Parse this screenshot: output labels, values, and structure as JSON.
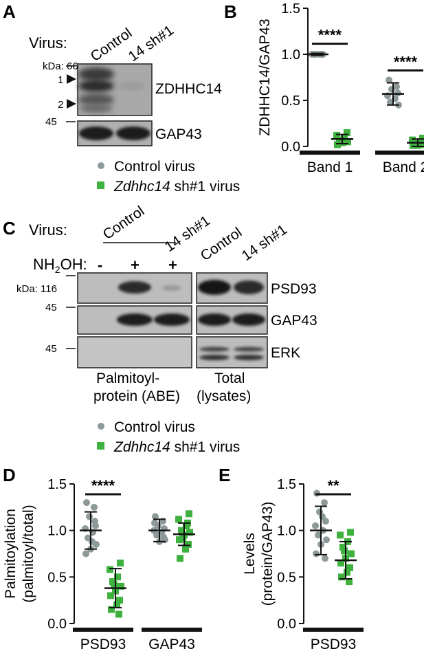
{
  "panels": {
    "A": {
      "letter": "A",
      "virus_label": "Virus:",
      "lanes": [
        "Control",
        "14 sh#1"
      ],
      "kda_label": "kDa: 66",
      "marker_45": "45",
      "band_labels": [
        "1",
        "2"
      ],
      "protein_labels": [
        "ZDHHC14",
        "GAP43"
      ]
    },
    "B": {
      "letter": "B"
    },
    "C": {
      "letter": "C",
      "virus_label": "Virus:",
      "control_label": "Control",
      "sh_label": "14 sh#1",
      "nh2oh_label": "NH",
      "nh2oh_sub": "2",
      "nh2oh_tail": "OH:",
      "nh2oh_signs": [
        "-",
        "+",
        "+"
      ],
      "total_lanes": [
        "Control",
        "14 sh#1"
      ],
      "kda_label": "kDa: 116",
      "marker_45a": "45",
      "marker_45b": "45",
      "protein_labels": [
        "PSD93",
        "GAP43",
        "ERK"
      ],
      "group1": [
        "Palmitoyl-",
        "protein (ABE)"
      ],
      "group2": [
        "Total",
        "(lysates)"
      ]
    },
    "D": {
      "letter": "D"
    },
    "E": {
      "letter": "E"
    }
  },
  "legend1": {
    "control": "Control virus",
    "sh_italic": "Zdhhc14",
    "sh_rest": " sh#1 virus"
  },
  "legend2": {
    "control": "Control virus",
    "sh_italic": "Zdhhc14",
    "sh_rest": " sh#1 virus"
  },
  "colors": {
    "control": "#8e9a99",
    "sh": "#3fb13f",
    "ink": "#111111"
  },
  "chart_data": [
    {
      "panel": "B",
      "type": "scatter",
      "ylabel": "ZDHHC14/GAP43",
      "categories": [
        "Band 1",
        "Band 2"
      ],
      "ylim": [
        0,
        1.5
      ],
      "yticks": [
        "0.0",
        "0.5",
        "1.0",
        "1.5"
      ],
      "significance": [
        "****",
        "****"
      ],
      "series": [
        {
          "name": "Control virus",
          "mean": [
            1.0,
            0.57
          ],
          "sd": [
            0.01,
            0.12
          ],
          "points": [
            [
              1.0,
              1.0,
              1.0,
              1.0,
              1.0,
              1.0,
              1.0,
              1.0
            ],
            [
              0.72,
              0.65,
              0.62,
              0.58,
              0.55,
              0.52,
              0.48,
              0.45
            ]
          ]
        },
        {
          "name": "Zdhhc14 sh#1 virus",
          "mean": [
            0.08,
            0.04
          ],
          "sd": [
            0.05,
            0.04
          ],
          "points": [
            [
              0.15,
              0.12,
              0.09,
              0.07,
              0.05,
              0.04,
              0.02
            ],
            [
              0.09,
              0.07,
              0.05,
              0.03,
              0.02,
              0.01,
              0.01
            ]
          ]
        }
      ]
    },
    {
      "panel": "D",
      "type": "scatter",
      "ylabel": "Palmitoylation",
      "ylabel2": "(palmitoyl/total)",
      "categories": [
        "PSD93",
        "GAP43"
      ],
      "ylim": [
        0,
        1.5
      ],
      "yticks": [
        "0.0",
        "0.5",
        "1.0",
        "1.5"
      ],
      "significance": [
        "****",
        ""
      ],
      "series": [
        {
          "name": "Control virus",
          "mean": [
            1.0,
            1.0
          ],
          "sd": [
            0.2,
            0.12
          ],
          "points": [
            [
              1.3,
              1.25,
              1.15,
              1.05,
              1.02,
              0.98,
              0.92,
              0.85,
              0.8,
              0.75,
              1.1,
              0.88
            ],
            [
              1.15,
              1.1,
              1.05,
              1.02,
              1.0,
              0.98,
              0.95,
              0.9,
              0.88,
              1.08,
              0.93
            ]
          ]
        },
        {
          "name": "Zdhhc14 sh#1 virus",
          "mean": [
            0.38,
            0.96
          ],
          "sd": [
            0.21,
            0.12
          ],
          "points": [
            [
              0.65,
              0.58,
              0.5,
              0.45,
              0.4,
              0.35,
              0.3,
              0.25,
              0.2,
              0.15,
              0.1,
              0.42
            ],
            [
              1.18,
              1.12,
              1.05,
              1.0,
              0.98,
              0.95,
              0.9,
              0.85,
              0.8,
              0.7,
              1.08,
              0.92
            ]
          ]
        }
      ]
    },
    {
      "panel": "E",
      "type": "scatter",
      "ylabel": "Levels",
      "ylabel2": "(protein/GAP43)",
      "categories": [
        "PSD93"
      ],
      "ylim": [
        0,
        1.5
      ],
      "yticks": [
        "0.0",
        "0.5",
        "1.0",
        "1.5"
      ],
      "significance": [
        "**"
      ],
      "series": [
        {
          "name": "Control virus",
          "mean": [
            1.0
          ],
          "sd": [
            0.26
          ],
          "points": [
            [
              1.4,
              1.3,
              1.2,
              1.1,
              1.05,
              1.0,
              0.95,
              0.9,
              0.85,
              0.75,
              0.7,
              1.15
            ]
          ]
        },
        {
          "name": "Zdhhc14 sh#1 virus",
          "mean": [
            0.68
          ],
          "sd": [
            0.2
          ],
          "points": [
            [
              0.98,
              0.95,
              0.88,
              0.82,
              0.75,
              0.7,
              0.65,
              0.6,
              0.55,
              0.5,
              0.45,
              0.78
            ]
          ]
        }
      ]
    }
  ]
}
